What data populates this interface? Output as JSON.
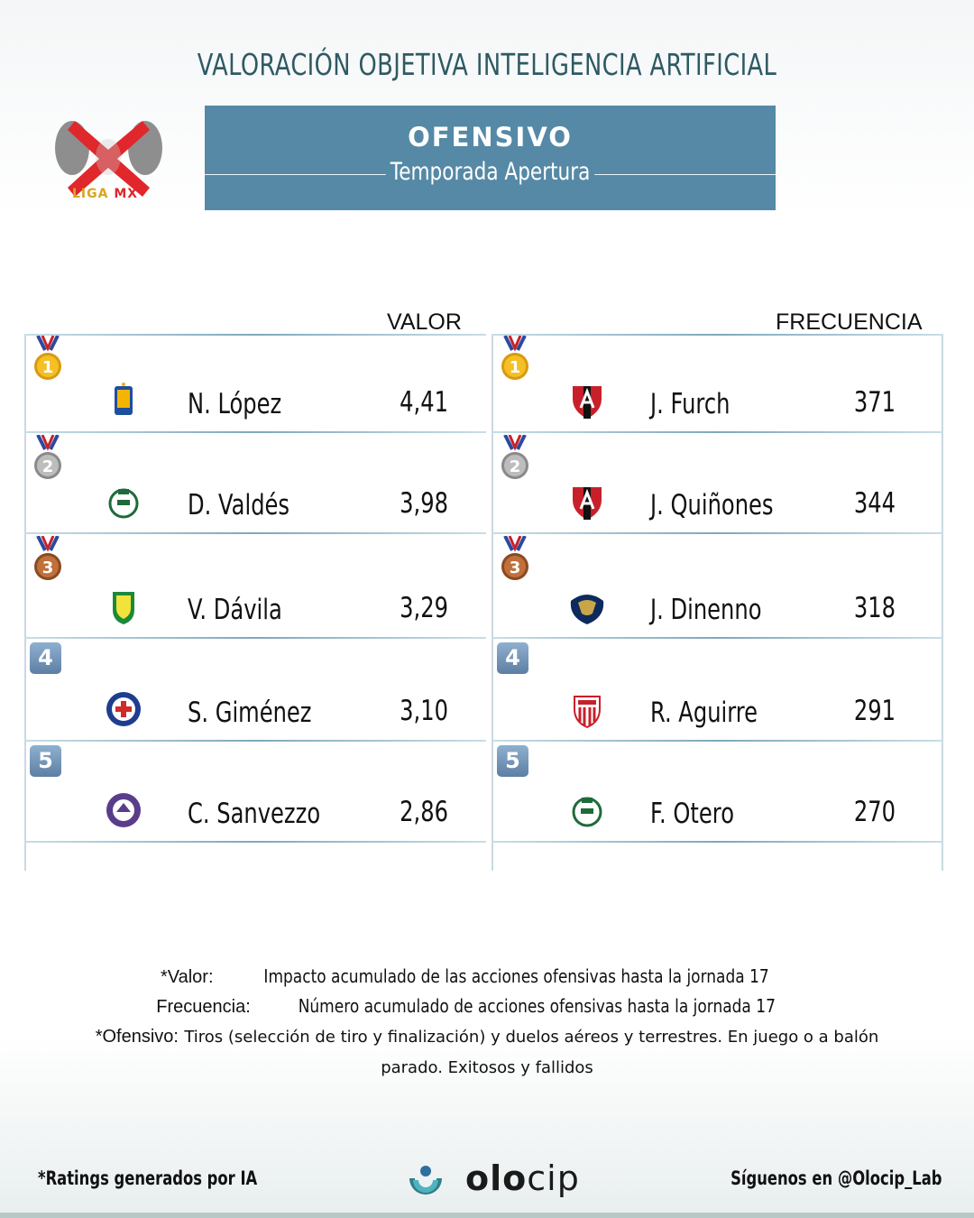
{
  "header": {
    "title": "VALORACIÓN OBJETIVA INTELIGENCIA ARTIFICIAL",
    "banner_main": "OFENSIVO",
    "banner_sub": "Temporada Apertura"
  },
  "logo": {
    "text": "LIGA MX",
    "icon": "liga-mx-logo",
    "colors": {
      "red": "#e0272b",
      "gray": "#8c8c8c",
      "gold": "#d9a520"
    }
  },
  "colors": {
    "title": "#2e5a63",
    "banner": "#5589a6",
    "panel_line": "#7ea8bb"
  },
  "valor": {
    "header": "VALOR",
    "rows": [
      {
        "rank": "1",
        "rank_icon": "gold-medal-icon",
        "team_icon": "tigres-crest-icon",
        "name": "N. López",
        "value": "4,41"
      },
      {
        "rank": "2",
        "rank_icon": "silver-medal-icon",
        "team_icon": "santos-crest-icon",
        "name": "D. Valdés",
        "value": "3,98"
      },
      {
        "rank": "3",
        "rank_icon": "bronze-medal-icon",
        "team_icon": "leon-crest-icon",
        "name": "V. Dávila",
        "value": "3,29"
      },
      {
        "rank": "4",
        "rank_icon": "rank-4-icon",
        "team_icon": "cruz-azul-crest-icon",
        "name": "S. Giménez",
        "value": "3,10"
      },
      {
        "rank": "5",
        "rank_icon": "rank-5-icon",
        "team_icon": "mazatlan-crest-icon",
        "name": "C. Sanvezzo",
        "value": "2,86"
      }
    ]
  },
  "frecuencia": {
    "header": "FRECUENCIA",
    "rows": [
      {
        "rank": "1",
        "rank_icon": "gold-medal-icon",
        "team_icon": "atlas-crest-icon",
        "name": "J. Furch",
        "value": "371"
      },
      {
        "rank": "2",
        "rank_icon": "silver-medal-icon",
        "team_icon": "atlas-crest-icon",
        "name": "J. Quiñones",
        "value": "344"
      },
      {
        "rank": "3",
        "rank_icon": "bronze-medal-icon",
        "team_icon": "pumas-crest-icon",
        "name": "J. Dinenno",
        "value": "318"
      },
      {
        "rank": "4",
        "rank_icon": "rank-4-icon",
        "team_icon": "necaxa-crest-icon",
        "name": "R. Aguirre",
        "value": "291"
      },
      {
        "rank": "5",
        "rank_icon": "rank-5-icon",
        "team_icon": "santos-crest-icon",
        "name": "F. Otero",
        "value": "270"
      }
    ]
  },
  "notes": {
    "valor_label": "*Valor:",
    "valor_text": "Impacto acumulado de las acciones ofensivas hasta la jornada 17",
    "frecuencia_label": "Frecuencia:",
    "frecuencia_text": "Número acumulado de acciones ofensivas hasta la jornada 17",
    "ofensivo_label": "*Ofensivo:",
    "ofensivo_text": "Tiros (selección de tiro y finalización) y duelos aéreos y terrestres. En juego o a balón parado. Exitosos y fallidos"
  },
  "footer": {
    "left": "*Ratings generados por IA",
    "brand_bold": "olo",
    "brand_light": "cip",
    "right": "Síguenos en @Olocip_Lab"
  }
}
